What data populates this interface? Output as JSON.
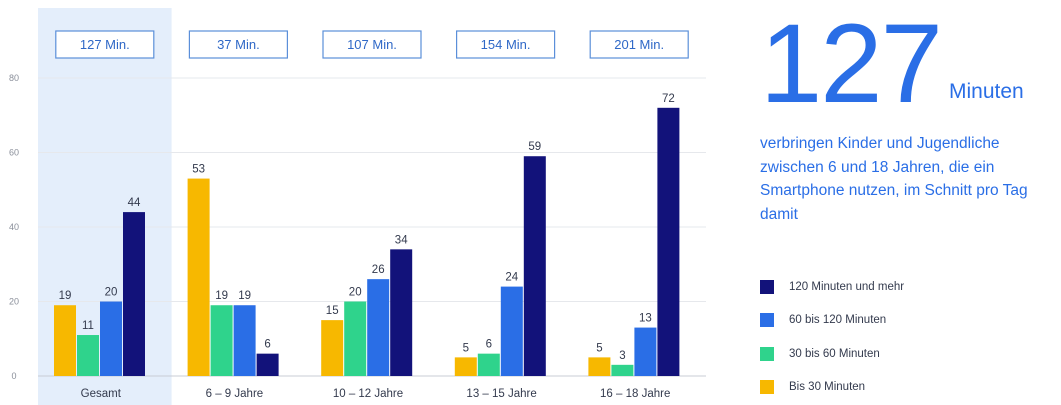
{
  "colors": {
    "bis30": "#f7b800",
    "b30_60": "#2fd38c",
    "b60_120": "#2a6ee6",
    "m120": "#12127a",
    "highlight": "#e4eefb",
    "accent": "#2a6ee6"
  },
  "chart_data": {
    "type": "bar",
    "categories": [
      "Gesamt",
      "6 – 9 Jahre",
      "10 – 12 Jahre",
      "13 – 15 Jahre",
      "16 – 18 Jahre"
    ],
    "series": [
      {
        "name": "Bis 30 Minuten",
        "values": [
          19,
          53,
          15,
          5,
          5
        ]
      },
      {
        "name": "30 bis 60 Minuten",
        "values": [
          11,
          19,
          20,
          6,
          3
        ]
      },
      {
        "name": "60 bis 120 Minuten",
        "values": [
          20,
          19,
          26,
          24,
          13
        ]
      },
      {
        "name": "120 Minuten und mehr",
        "values": [
          44,
          6,
          34,
          59,
          72
        ]
      }
    ],
    "category_totals": [
      "127 Min.",
      "37 Min.",
      "107 Min.",
      "154 Min.",
      "201 Min."
    ],
    "yticks": [
      0,
      20,
      40,
      60,
      80
    ],
    "ylim": [
      0,
      80
    ],
    "grid": true,
    "highlighted_category": "Gesamt",
    "legend_position": "right"
  },
  "headline": {
    "value": "127",
    "unit": "Minuten",
    "description": "verbringen Kinder und Jugendliche zwischen 6 und 18 Jahren, die ein Smartphone nutzen, im Schnitt pro Tag damit"
  },
  "legend": [
    {
      "label": "120 Minuten und mehr",
      "color": "#12127a"
    },
    {
      "label": "60 bis 120 Minuten",
      "color": "#2a6ee6"
    },
    {
      "label": "30 bis 60 Minuten",
      "color": "#2fd38c"
    },
    {
      "label": "Bis 30 Minuten",
      "color": "#f7b800"
    }
  ]
}
